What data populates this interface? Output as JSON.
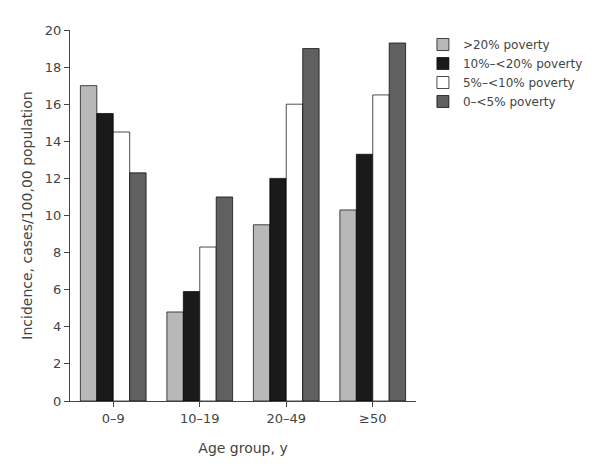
{
  "chart_data": {
    "type": "bar",
    "categories": [
      "0–9",
      "10–19",
      "20–49",
      "≥50"
    ],
    "series": [
      {
        "name": ">20% poverty",
        "color": "#b8b8b8",
        "values": [
          17.0,
          4.8,
          9.5,
          10.3
        ]
      },
      {
        "name": "10%–<20% poverty",
        "color": "#1a1a1a",
        "values": [
          15.5,
          5.9,
          12.0,
          13.3
        ]
      },
      {
        "name": "5%–<10% poverty",
        "color": "#ffffff",
        "values": [
          14.5,
          8.3,
          16.0,
          16.5
        ]
      },
      {
        "name": "0–<5% poverty",
        "color": "#606060",
        "values": [
          12.3,
          11.0,
          19.0,
          19.3
        ]
      }
    ],
    "xlabel": "Age group, y",
    "ylabel": "Incidence, cases/100,00 population",
    "ylim": [
      0,
      20
    ],
    "yticks": [
      0,
      2,
      4,
      6,
      8,
      10,
      12,
      14,
      16,
      18,
      20
    ],
    "grid": false,
    "legend": "upper right"
  }
}
